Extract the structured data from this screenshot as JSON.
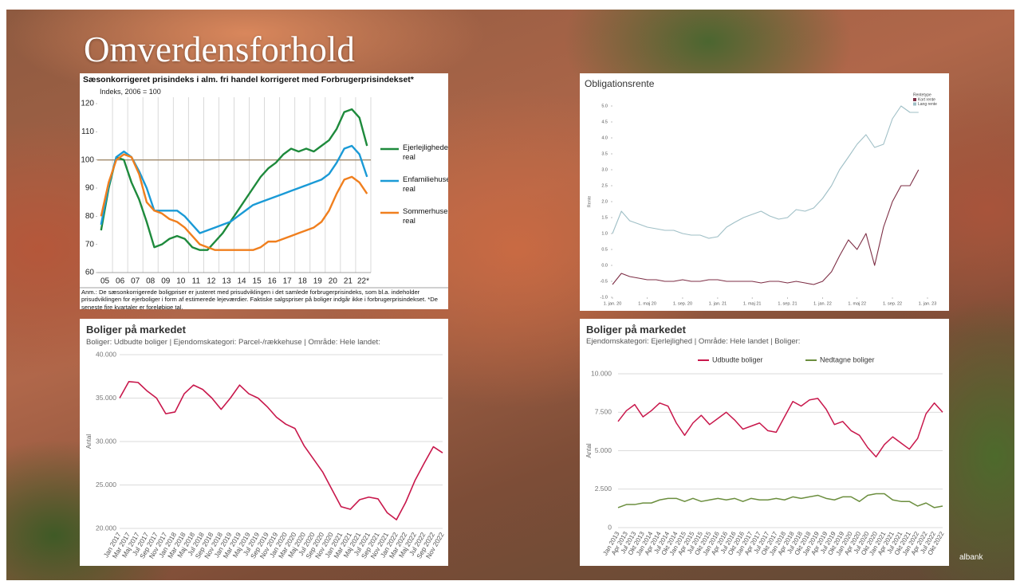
{
  "slide_title": "Omverdensforhold",
  "logo_text": "albank",
  "chart_data": [
    {
      "type": "line",
      "title": "Sæsonkorrigeret prisindeks i alm. fri handel korrigeret med Forbrugerprisindekset*",
      "subtitle": "Indeks, 2006 = 100",
      "note": "Anm.: De sæsonkorrigerede boligpriser er justeret med prisudviklingen i det samlede forbrugerprisindeks, som bl.a. indeholder prisudviklingen for ejerboliger i form af estimerede lejeværdier. Faktiske salgspriser på boliger indgår ikke i forbrugerprisindekset. *De seneste fire kvartaler er foreløbige tal.",
      "x": [
        2005.25,
        2005.75,
        2006.25,
        2006.75,
        2007.25,
        2007.75,
        2008.25,
        2008.75,
        2009.25,
        2009.75,
        2010.25,
        2010.75,
        2011.25,
        2011.75,
        2012.25,
        2012.75,
        2013.25,
        2013.75,
        2014.25,
        2014.75,
        2015.25,
        2015.75,
        2016.25,
        2016.75,
        2017.25,
        2017.75,
        2018.25,
        2018.75,
        2019.25,
        2019.75,
        2020.25,
        2020.75,
        2021.25,
        2021.75,
        2022.25,
        2022.75
      ],
      "xlim": [
        2005,
        2023
      ],
      "xticks": [
        {
          "value": 2005.5,
          "label": "05"
        },
        {
          "value": 2006.5,
          "label": "06"
        },
        {
          "value": 2007.5,
          "label": "07"
        },
        {
          "value": 2008.5,
          "label": "08"
        },
        {
          "value": 2009.5,
          "label": "09"
        },
        {
          "value": 2010.5,
          "label": "10"
        },
        {
          "value": 2011.5,
          "label": "11"
        },
        {
          "value": 2012.5,
          "label": "12"
        },
        {
          "value": 2013.5,
          "label": "13"
        },
        {
          "value": 2014.5,
          "label": "14"
        },
        {
          "value": 2015.5,
          "label": "15"
        },
        {
          "value": 2016.5,
          "label": "16"
        },
        {
          "value": 2017.5,
          "label": "17"
        },
        {
          "value": 2018.5,
          "label": "18"
        },
        {
          "value": 2019.5,
          "label": "19"
        },
        {
          "value": 2020.5,
          "label": "20"
        },
        {
          "value": 2021.5,
          "label": "21"
        },
        {
          "value": 2022.5,
          "label": "22*"
        }
      ],
      "ylim": [
        60,
        120
      ],
      "yticks": [
        60,
        70,
        80,
        90,
        100,
        110,
        120
      ],
      "reference_line": 100,
      "reference_color": "#a0896a",
      "grid": "x",
      "legend": "right",
      "series": [
        {
          "name": "Ejerlejligheder, real",
          "color": "#1e8a3c",
          "values": [
            75,
            90,
            101,
            100,
            92,
            86,
            78,
            69,
            70,
            72,
            73,
            72,
            69,
            68,
            68,
            71,
            74,
            78,
            82,
            86,
            90,
            94,
            97,
            99,
            102,
            104,
            103,
            104,
            103,
            105,
            107,
            111,
            117,
            118,
            115,
            105
          ]
        },
        {
          "name": "Enfamiliehuse, real",
          "color": "#1a9ad6",
          "values": [
            77,
            91,
            101,
            103,
            101,
            96,
            90,
            82,
            82,
            82,
            82,
            80,
            77,
            74,
            75,
            76,
            77,
            78,
            80,
            82,
            84,
            85,
            86,
            87,
            88,
            89,
            90,
            91,
            92,
            93,
            95,
            99,
            104,
            105,
            102,
            94
          ]
        },
        {
          "name": "Sommerhuse, real",
          "color": "#f07f1e",
          "values": [
            80,
            92,
            100,
            102,
            101,
            95,
            85,
            82,
            81,
            79,
            78,
            76,
            73,
            70,
            69,
            68,
            68,
            68,
            68,
            68,
            68,
            69,
            71,
            71,
            72,
            73,
            74,
            75,
            76,
            78,
            82,
            88,
            93,
            94,
            92,
            88
          ]
        }
      ]
    },
    {
      "type": "line",
      "title": "Obligationsrente",
      "y_label": "Rente",
      "legend_title": "Rentetype",
      "x": [
        "2020-01-01",
        "2020-02-01",
        "2020-03-01",
        "2020-04-01",
        "2020-05-01",
        "2020-06-01",
        "2020-07-01",
        "2020-08-01",
        "2020-09-01",
        "2020-10-01",
        "2020-11-01",
        "2020-12-01",
        "2021-01-01",
        "2021-02-01",
        "2021-03-01",
        "2021-04-01",
        "2021-05-01",
        "2021-06-01",
        "2021-07-01",
        "2021-08-01",
        "2021-09-01",
        "2021-10-01",
        "2021-11-01",
        "2021-12-01",
        "2022-01-01",
        "2022-02-01",
        "2022-03-01",
        "2022-04-01",
        "2022-05-01",
        "2022-06-01",
        "2022-07-01",
        "2022-08-01",
        "2022-09-01",
        "2022-10-01",
        "2022-11-01",
        "2022-12-01"
      ],
      "xlim": [
        "2020-01-01",
        "2023-01-01"
      ],
      "xticks": [
        {
          "value": "2020-01-01",
          "label": "1. jan. 20"
        },
        {
          "value": "2020-05-01",
          "label": "1. maj 20"
        },
        {
          "value": "2020-09-01",
          "label": "1. sep. 20"
        },
        {
          "value": "2021-01-01",
          "label": "1. jan. 21"
        },
        {
          "value": "2021-05-01",
          "label": "1. maj 21"
        },
        {
          "value": "2021-09-01",
          "label": "1. sep. 21"
        },
        {
          "value": "2022-01-01",
          "label": "1. jan. 22"
        },
        {
          "value": "2022-05-01",
          "label": "1. maj 22"
        },
        {
          "value": "2022-09-01",
          "label": "1. sep. 22"
        },
        {
          "value": "2023-01-01",
          "label": "1. jan. 23"
        }
      ],
      "ylim": [
        -1,
        5
      ],
      "yticks": [
        {
          "value": -1,
          "label": "-1.0"
        },
        {
          "value": -0.5,
          "label": "-0.5"
        },
        {
          "value": 0,
          "label": "0.0"
        },
        {
          "value": 0.5,
          "label": "0.5"
        },
        {
          "value": 1,
          "label": "1.0"
        },
        {
          "value": 1.5,
          "label": "1.5"
        },
        {
          "value": 2,
          "label": "2.0"
        },
        {
          "value": 2.5,
          "label": "2.5"
        },
        {
          "value": 3,
          "label": "3.0"
        },
        {
          "value": 3.5,
          "label": "3.5"
        },
        {
          "value": 4,
          "label": "4.0"
        },
        {
          "value": 4.5,
          "label": "4.5"
        },
        {
          "value": 5,
          "label": "5.0"
        }
      ],
      "grid": false,
      "legend": "top-right",
      "series": [
        {
          "name": "Kort rente",
          "color": "#7d2e45",
          "values": [
            -0.6,
            -0.25,
            -0.35,
            -0.4,
            -0.45,
            -0.45,
            -0.5,
            -0.5,
            -0.45,
            -0.5,
            -0.5,
            -0.45,
            -0.45,
            -0.5,
            -0.5,
            -0.5,
            -0.5,
            -0.55,
            -0.5,
            -0.5,
            -0.55,
            -0.5,
            -0.55,
            -0.6,
            -0.5,
            -0.2,
            0.3,
            0.8,
            0.5,
            1.0,
            0.0,
            1.2,
            2.0,
            2.5,
            2.5,
            3.0
          ]
        },
        {
          "name": "Lang rente",
          "color": "#9fbfc6",
          "values": [
            1.0,
            1.7,
            1.4,
            1.3,
            1.2,
            1.15,
            1.1,
            1.1,
            1.0,
            0.95,
            0.95,
            0.85,
            0.9,
            1.2,
            1.35,
            1.5,
            1.6,
            1.7,
            1.55,
            1.45,
            1.5,
            1.75,
            1.7,
            1.8,
            2.1,
            2.5,
            3.0,
            3.4,
            3.8,
            4.1,
            3.7,
            3.8,
            4.6,
            5.0,
            4.8,
            4.8
          ]
        }
      ]
    },
    {
      "type": "line",
      "title": "Boliger på markedet",
      "subtitle": "Boliger: Udbudte boliger | Ejendomskategori: Parcel-/rækkehuse | Område: Hele landet:",
      "y_label": "Antal",
      "categories": [
        "Jan 2017",
        "Mar 2017",
        "Maj 2017",
        "Jul 2017",
        "Sep 2017",
        "Nov 2017",
        "Jan 2018",
        "Mar 2018",
        "Maj 2018",
        "Jul 2018",
        "Sep 2018",
        "Nov 2018",
        "Jan 2019",
        "Mar 2019",
        "Maj 2019",
        "Jul 2019",
        "Sep 2019",
        "Nov 2019",
        "Jan 2020",
        "Mar 2020",
        "Maj 2020",
        "Jul 2020",
        "Sep 2020",
        "Nov 2020",
        "Jan 2021",
        "Mar 2021",
        "Maj 2021",
        "Jul 2021",
        "Sep 2021",
        "Nov 2021",
        "Jan 2022",
        "Mar 2022",
        "Maj 2022",
        "Jul 2022",
        "Sep 2022",
        "Nov 2022"
      ],
      "ylim": [
        20000,
        40000
      ],
      "yticks": [
        {
          "value": 20000,
          "label": "20.000"
        },
        {
          "value": 25000,
          "label": "25.000"
        },
        {
          "value": 30000,
          "label": "30.000"
        },
        {
          "value": 35000,
          "label": "35.000"
        },
        {
          "value": 40000,
          "label": "40.000"
        }
      ],
      "grid": "y",
      "series": [
        {
          "color": "#c8174b",
          "values": [
            35000,
            36900,
            36800,
            35800,
            35000,
            33200,
            33400,
            35500,
            36500,
            36000,
            35000,
            33700,
            35000,
            36500,
            35500,
            35000,
            34000,
            32800,
            32000,
            31500,
            29500,
            28000,
            26500,
            24500,
            22500,
            22200,
            23300,
            23600,
            23400,
            21800,
            21000,
            23000,
            25500,
            27500,
            29400,
            28700
          ]
        }
      ]
    },
    {
      "type": "line",
      "title": "Boliger på markedet",
      "subtitle": "Ejendomskategori: Ejerlejlighed | Område: Hele landet | Boliger:",
      "y_label": "Antal",
      "categories": [
        "Jan 2013",
        "Apr 2013",
        "Jul 2013",
        "Okt 2013",
        "Jan 2014",
        "Apr 2014",
        "Jul 2014",
        "Okt 2014",
        "Jan 2015",
        "Apr 2015",
        "Jul 2015",
        "Okt 2015",
        "Jan 2016",
        "Apr 2016",
        "Jul 2016",
        "Okt 2016",
        "Jan 2017",
        "Apr 2017",
        "Jul 2017",
        "Okt 2017",
        "Jan 2018",
        "Apr 2018",
        "Jul 2018",
        "Okt 2018",
        "Jan 2019",
        "Apr 2019",
        "Jul 2019",
        "Okt 2019",
        "Jan 2020",
        "Apr 2020",
        "Jul 2020",
        "Okt 2020",
        "Jan 2021",
        "Apr 2021",
        "Jul 2021",
        "Okt 2021",
        "Jan 2022",
        "Apr 2022",
        "Jul 2022",
        "Okt 2022"
      ],
      "ylim": [
        0,
        10000
      ],
      "yticks": [
        0,
        {
          "value": 2500,
          "label": "2.500"
        },
        {
          "value": 5000,
          "label": "5.000"
        },
        {
          "value": 7500,
          "label": "7.500"
        },
        {
          "value": 10000,
          "label": "10.000"
        }
      ],
      "grid": "y",
      "legend": "top",
      "series": [
        {
          "name": "Udbudte boliger",
          "color": "#c8174b",
          "values": [
            6900,
            7600,
            8000,
            7200,
            7600,
            8100,
            7900,
            6800,
            6000,
            6800,
            7300,
            6700,
            7100,
            7500,
            7000,
            6400,
            6600,
            6800,
            6300,
            6200,
            7200,
            8200,
            7900,
            8300,
            8400,
            7700,
            6700,
            6900,
            6300,
            6000,
            5200,
            4600,
            5400,
            5900,
            5500,
            5100,
            5800,
            7400,
            8100,
            7500
          ]
        },
        {
          "name": "Nedtagne boliger",
          "color": "#6b8e3e",
          "values": [
            1300,
            1500,
            1500,
            1600,
            1600,
            1800,
            1900,
            1900,
            1700,
            1900,
            1700,
            1800,
            1900,
            1800,
            1900,
            1700,
            1900,
            1800,
            1800,
            1900,
            1800,
            2000,
            1900,
            2000,
            2100,
            1900,
            1800,
            2000,
            2000,
            1700,
            2100,
            2200,
            2200,
            1800,
            1700,
            1700,
            1400,
            1600,
            1300,
            1400
          ]
        }
      ]
    }
  ]
}
